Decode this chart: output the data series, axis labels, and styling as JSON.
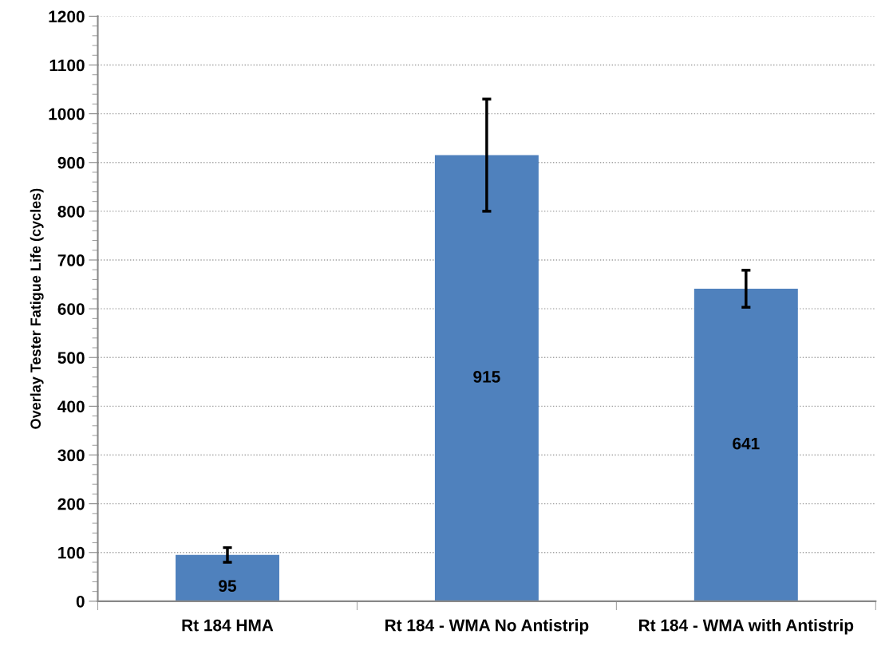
{
  "chart_data": {
    "type": "bar",
    "ylabel": "Overlay Tester Fatigue Life (cycles)",
    "categories": [
      "Rt 184 HMA",
      "Rt 184 - WMA No Antistrip",
      "Rt 184 - WMA with Antistrip"
    ],
    "values": [
      95,
      915,
      641
    ],
    "color": "#4f81bd",
    "errors": [
      15,
      115,
      38
    ],
    "ylim": [
      0,
      1200
    ],
    "yticks": [
      0,
      100,
      200,
      300,
      400,
      500,
      600,
      700,
      800,
      900,
      1000,
      1100,
      1200
    ],
    "grid": "y",
    "data_labels": true
  }
}
